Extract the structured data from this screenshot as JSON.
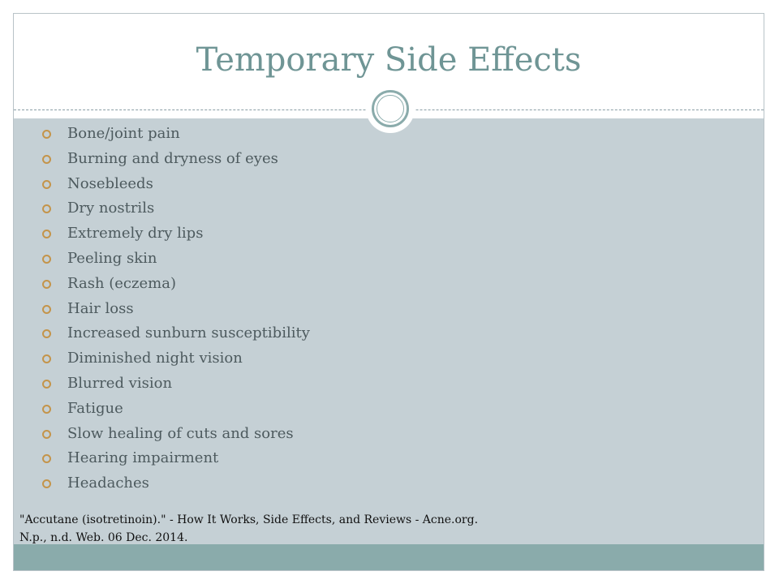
{
  "slide": {
    "title": "Temporary Side Effects",
    "bullets": [
      "Bone/joint pain",
      "Burning and dryness of eyes",
      "Nosebleeds",
      "Dry nostrils",
      "Extremely dry lips",
      "Peeling skin",
      "Rash (eczema)",
      "Hair loss",
      "Increased sunburn susceptibility",
      "Diminished night vision",
      "Blurred vision",
      "Fatigue",
      "Slow healing of cuts and sores",
      "Hearing impairment",
      "Headaches"
    ],
    "citation_line1": "\"Accutane (isotretinoin).\" - How It Works, Side Effects, and Reviews - Acne.org.",
    "citation_line2": "N.p., n.d. Web. 06 Dec. 2014."
  },
  "icons": {
    "bullet": "hollow-circle-icon",
    "divider_ornament": "double-ring-icon"
  },
  "colors": {
    "title": "#6f9595",
    "content_background": "#c5d0d5",
    "footer_band": "#8aabab",
    "bullet_icon": "#c4944a",
    "body_text": "#4d5a5e"
  }
}
